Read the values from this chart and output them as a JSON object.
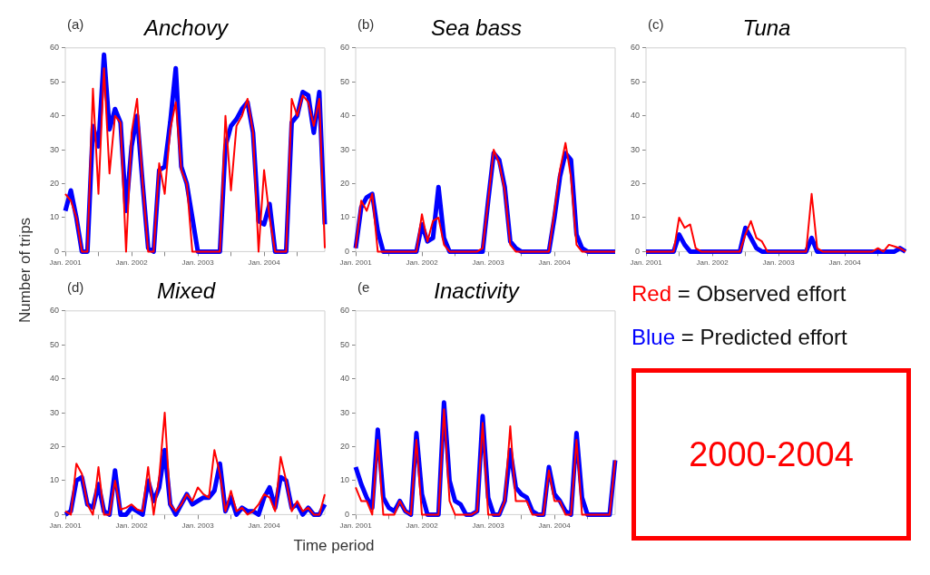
{
  "chart_data": [
    {
      "type": "line",
      "title": "Anchovy",
      "annotations": [
        "(a)"
      ],
      "ylabel": "Number of trips",
      "categories": [
        "Jan. 2001",
        null,
        null,
        null,
        null,
        null,
        null,
        null,
        null,
        null,
        null,
        null,
        "Jan. 2002",
        null,
        null,
        null,
        null,
        null,
        null,
        null,
        null,
        null,
        null,
        null,
        "Jan. 2003",
        null,
        null,
        null,
        null,
        null,
        null,
        null,
        null,
        null,
        null,
        null,
        "Jan. 2004",
        null,
        null,
        null,
        null,
        null,
        null,
        null,
        null,
        null,
        null,
        null
      ],
      "ylim": [
        0,
        60
      ],
      "yticks": [
        0,
        10,
        20,
        30,
        40,
        50,
        60
      ],
      "grid": false,
      "legend": false,
      "series": [
        {
          "color": "#ff0000",
          "values": [
            17,
            15,
            10,
            0,
            0,
            48,
            17,
            54,
            23,
            40,
            38,
            0,
            35,
            45,
            20,
            0,
            0,
            26,
            17,
            36,
            44,
            24,
            20,
            0,
            0,
            0,
            0,
            0,
            0,
            40,
            18,
            37,
            40,
            45,
            35,
            0,
            24,
            10,
            0,
            0,
            0,
            45,
            40,
            46,
            44,
            37,
            45,
            1
          ]
        },
        {
          "color": "#0000ff",
          "values": [
            12,
            18,
            10,
            0,
            0,
            37,
            31,
            58,
            36,
            42,
            38,
            12,
            31,
            40,
            20,
            1,
            0,
            24,
            25,
            38,
            54,
            25,
            20,
            10,
            0,
            0,
            0,
            0,
            0,
            31,
            37,
            39,
            42,
            44,
            35,
            9,
            8,
            14,
            0,
            0,
            0,
            38,
            40,
            47,
            46,
            35,
            47,
            8
          ]
        }
      ]
    },
    {
      "type": "line",
      "title": "Sea bass",
      "annotations": [
        "(b)"
      ],
      "categories": [
        "Jan. 2001",
        null,
        null,
        null,
        null,
        null,
        null,
        null,
        null,
        null,
        null,
        null,
        "Jan. 2002",
        null,
        null,
        null,
        null,
        null,
        null,
        null,
        null,
        null,
        null,
        null,
        "Jan. 2003",
        null,
        null,
        null,
        null,
        null,
        null,
        null,
        null,
        null,
        null,
        null,
        "Jan. 2004",
        null,
        null,
        null,
        null,
        null,
        null,
        null,
        null,
        null,
        null,
        null
      ],
      "ylim": [
        0,
        60
      ],
      "yticks": [
        0,
        10,
        20,
        30,
        40,
        50,
        60
      ],
      "grid": false,
      "legend": false,
      "series": [
        {
          "color": "#ff0000",
          "values": [
            1,
            15,
            12,
            17,
            0,
            0,
            0,
            0,
            0,
            0,
            0,
            0,
            11,
            3,
            9,
            10,
            2,
            0,
            0,
            0,
            0,
            0,
            0,
            1,
            15,
            30,
            26,
            18,
            2,
            0,
            0,
            0,
            0,
            0,
            0,
            0,
            12,
            24,
            32,
            22,
            2,
            0,
            0,
            0,
            0,
            0,
            0,
            0
          ]
        },
        {
          "color": "#0000ff",
          "values": [
            1,
            13,
            16,
            17,
            6,
            0,
            0,
            0,
            0,
            0,
            0,
            0,
            8,
            3,
            4,
            19,
            4,
            0,
            0,
            0,
            0,
            0,
            0,
            0,
            15,
            29,
            27,
            19,
            3,
            1,
            0,
            0,
            0,
            0,
            0,
            0,
            10,
            22,
            29,
            27,
            5,
            1,
            0,
            0,
            0,
            0,
            0,
            0
          ]
        }
      ]
    },
    {
      "type": "line",
      "title": "Tuna",
      "annotations": [
        "(c)"
      ],
      "categories": [
        "Jan. 2001",
        null,
        null,
        null,
        null,
        null,
        null,
        null,
        null,
        null,
        null,
        null,
        "Jan. 2002",
        null,
        null,
        null,
        null,
        null,
        null,
        null,
        null,
        null,
        null,
        null,
        "Jan. 2003",
        null,
        null,
        null,
        null,
        null,
        null,
        null,
        null,
        null,
        null,
        null,
        "Jan. 2004",
        null,
        null,
        null,
        null,
        null,
        null,
        null,
        null,
        null,
        null,
        null
      ],
      "ylim": [
        0,
        60
      ],
      "yticks": [
        0,
        10,
        20,
        30,
        40,
        50,
        60
      ],
      "grid": false,
      "legend": false,
      "series": [
        {
          "color": "#ff0000",
          "values": [
            0,
            0,
            0,
            0,
            0,
            0,
            10,
            7,
            8,
            1,
            0,
            0,
            0,
            0,
            0,
            0,
            0,
            0,
            5,
            9,
            4,
            3,
            0,
            0,
            0,
            0,
            0,
            0,
            0,
            0,
            17,
            1,
            0,
            0,
            0,
            0,
            0,
            0,
            0,
            0,
            0,
            0,
            1,
            0,
            2,
            1.5,
            1,
            0
          ]
        },
        {
          "color": "#0000ff",
          "values": [
            0,
            0,
            0,
            0,
            0,
            0,
            5,
            2,
            0,
            0,
            0,
            0,
            0,
            0,
            0,
            0,
            0,
            0,
            7,
            4,
            1,
            0,
            0,
            0,
            0,
            0,
            0,
            0,
            0,
            0,
            4,
            0,
            0,
            0,
            0,
            0,
            0,
            0,
            0,
            0,
            0,
            0,
            0,
            0,
            0,
            0,
            1,
            0
          ]
        }
      ]
    },
    {
      "type": "line",
      "title": "Mixed",
      "annotations": [
        "(d)"
      ],
      "categories": [
        "Jan. 2001",
        null,
        null,
        null,
        null,
        null,
        null,
        null,
        null,
        null,
        null,
        null,
        "Jan. 2002",
        null,
        null,
        null,
        null,
        null,
        null,
        null,
        null,
        null,
        null,
        null,
        "Jan. 2003",
        null,
        null,
        null,
        null,
        null,
        null,
        null,
        null,
        null,
        null,
        null,
        "Jan. 2004",
        null,
        null,
        null,
        null,
        null,
        null,
        null,
        null,
        null,
        null,
        null
      ],
      "ylim": [
        0,
        60
      ],
      "yticks": [
        0,
        10,
        20,
        30,
        40,
        50,
        60
      ],
      "grid": false,
      "legend": false,
      "series": [
        {
          "color": "#ff0000",
          "values": [
            1,
            0,
            15,
            12,
            3,
            0,
            14,
            0,
            0,
            10,
            1.5,
            2,
            3,
            1.5,
            1,
            14,
            0,
            11,
            30,
            3,
            1,
            3,
            6,
            4,
            8,
            6,
            5,
            19,
            12,
            1,
            7,
            1,
            2,
            0,
            1,
            3,
            6,
            5,
            1,
            17,
            10,
            1,
            4,
            1,
            2,
            0,
            0,
            6
          ]
        },
        {
          "color": "#0000ff",
          "values": [
            0,
            1,
            10,
            11,
            3,
            2,
            9,
            1,
            0,
            13,
            0,
            0,
            2,
            1,
            0,
            10,
            4,
            8,
            19,
            3,
            0,
            3,
            6,
            3,
            4,
            5,
            5,
            7,
            15,
            1,
            5,
            0,
            2,
            1,
            1,
            0,
            5,
            8,
            2,
            11,
            10,
            2,
            3,
            0,
            2,
            0,
            0,
            3
          ]
        }
      ]
    },
    {
      "type": "line",
      "title": "Inactivity",
      "annotations": [
        "(e"
      ],
      "xlabel": "Time period",
      "categories": [
        "Jan. 2001",
        null,
        null,
        null,
        null,
        null,
        null,
        null,
        null,
        null,
        null,
        null,
        "Jan. 2002",
        null,
        null,
        null,
        null,
        null,
        null,
        null,
        null,
        null,
        null,
        null,
        "Jan. 2003",
        null,
        null,
        null,
        null,
        null,
        null,
        null,
        null,
        null,
        null,
        null,
        "Jan. 2004",
        null,
        null,
        null,
        null,
        null,
        null,
        null,
        null,
        null,
        null,
        null
      ],
      "ylim": [
        0,
        60
      ],
      "yticks": [
        0,
        10,
        20,
        30,
        40,
        50,
        60
      ],
      "grid": false,
      "legend": false,
      "series": [
        {
          "color": "#ff0000",
          "values": [
            8,
            4,
            4,
            0,
            22,
            0,
            0,
            0,
            4,
            1,
            0,
            22,
            0,
            0,
            0,
            0,
            31,
            4,
            0,
            0,
            0,
            0,
            1,
            27,
            0,
            0,
            0,
            4,
            26,
            4,
            4,
            4,
            0,
            0,
            0,
            13,
            4,
            4,
            0,
            0,
            22,
            0,
            0,
            0,
            0,
            0,
            0,
            16
          ]
        },
        {
          "color": "#0000ff",
          "values": [
            14,
            9,
            5,
            2,
            25,
            5,
            2,
            1,
            4,
            1,
            0,
            24,
            6,
            0,
            0,
            0,
            33,
            10,
            4,
            3,
            0,
            0,
            1,
            29,
            5,
            0,
            0,
            4,
            19,
            8,
            6,
            5,
            1,
            0,
            0,
            14,
            6,
            4,
            1,
            0,
            24,
            5,
            0,
            0,
            0,
            0,
            0,
            16
          ]
        }
      ]
    },
    {
      "type": "other",
      "annotations": [
        "Red = Observed effort",
        "Blue = Predicted effort",
        "2000-2004"
      ],
      "colors": [
        "#ff0000",
        "#0000ff",
        "#ff0000"
      ]
    }
  ]
}
